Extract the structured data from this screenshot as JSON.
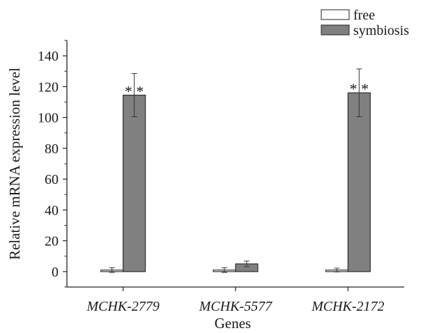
{
  "chart_data": {
    "type": "bar",
    "xlabel": "Genes",
    "ylabel": "Relative mRNA expression level",
    "ylim": [
      -10,
      150
    ],
    "yticks": [
      0,
      20,
      40,
      60,
      80,
      100,
      120,
      140
    ],
    "categories": [
      "MCHK-2779",
      "MCHK-5577",
      "MCHK-2172"
    ],
    "series": [
      {
        "name": "free",
        "values": [
          1,
          1,
          1
        ],
        "errors": [
          1.5,
          1.5,
          1.2
        ],
        "color": "#ffffff"
      },
      {
        "name": "symbiosis",
        "values": [
          114.5,
          5,
          116
        ],
        "errors": [
          14,
          1.8,
          15.5
        ],
        "color": "#808080"
      }
    ],
    "annotations": [
      {
        "category": "MCHK-2779",
        "text": "* *"
      },
      {
        "category": "MCHK-2172",
        "text": "* *"
      }
    ],
    "legend_position": "top-right",
    "grid": false
  }
}
